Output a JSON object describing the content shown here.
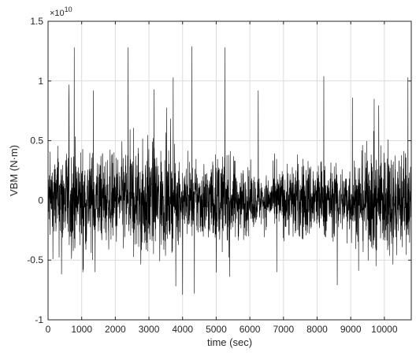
{
  "chart_data": {
    "type": "line",
    "title": "",
    "xlabel": "time (sec)",
    "ylabel": "VBM (N·m)",
    "y_exponent_label": "×10",
    "y_exponent_power": "10",
    "xlim": [
      0,
      10800
    ],
    "ylim": [
      -1,
      1.5
    ],
    "y_scale_factor": 10000000000.0,
    "grid": true,
    "x_ticks": [
      0,
      1000,
      2000,
      3000,
      4000,
      5000,
      6000,
      7000,
      8000,
      9000,
      10000
    ],
    "x_tick_labels": [
      "0",
      "1000",
      "2000",
      "3000",
      "4000",
      "5000",
      "6000",
      "7000",
      "8000",
      "9000",
      "10000"
    ],
    "y_ticks": [
      -1,
      -0.5,
      0,
      0.5,
      1,
      1.5
    ],
    "y_tick_labels": [
      "-1",
      "-0.5",
      "0",
      "0.5",
      "1",
      "1.5"
    ],
    "series": [
      {
        "color": "#000000",
        "description": "dense random-looking oscillation around zero, bulk envelope ~±0.4, peaks up to ~1.28",
        "peaks": [
          {
            "x": 620,
            "y": 0.97
          },
          {
            "x": 780,
            "y": 1.28
          },
          {
            "x": 1350,
            "y": 0.92
          },
          {
            "x": 2380,
            "y": 1.28
          },
          {
            "x": 3150,
            "y": 0.93
          },
          {
            "x": 3720,
            "y": 1.03
          },
          {
            "x": 4280,
            "y": 1.29
          },
          {
            "x": 5260,
            "y": 1.28
          },
          {
            "x": 6250,
            "y": 0.92
          },
          {
            "x": 8200,
            "y": 1.04
          },
          {
            "x": 9050,
            "y": 0.86
          },
          {
            "x": 10700,
            "y": 1.03
          }
        ],
        "troughs": [
          {
            "x": 400,
            "y": -0.62
          },
          {
            "x": 1050,
            "y": -0.58
          },
          {
            "x": 1400,
            "y": -0.6
          },
          {
            "x": 3800,
            "y": -0.72
          },
          {
            "x": 4000,
            "y": -0.79
          },
          {
            "x": 4350,
            "y": -0.78
          },
          {
            "x": 5400,
            "y": -0.64
          },
          {
            "x": 6800,
            "y": -0.6
          },
          {
            "x": 8600,
            "y": -0.71
          },
          {
            "x": 9750,
            "y": -0.55
          }
        ]
      }
    ]
  }
}
